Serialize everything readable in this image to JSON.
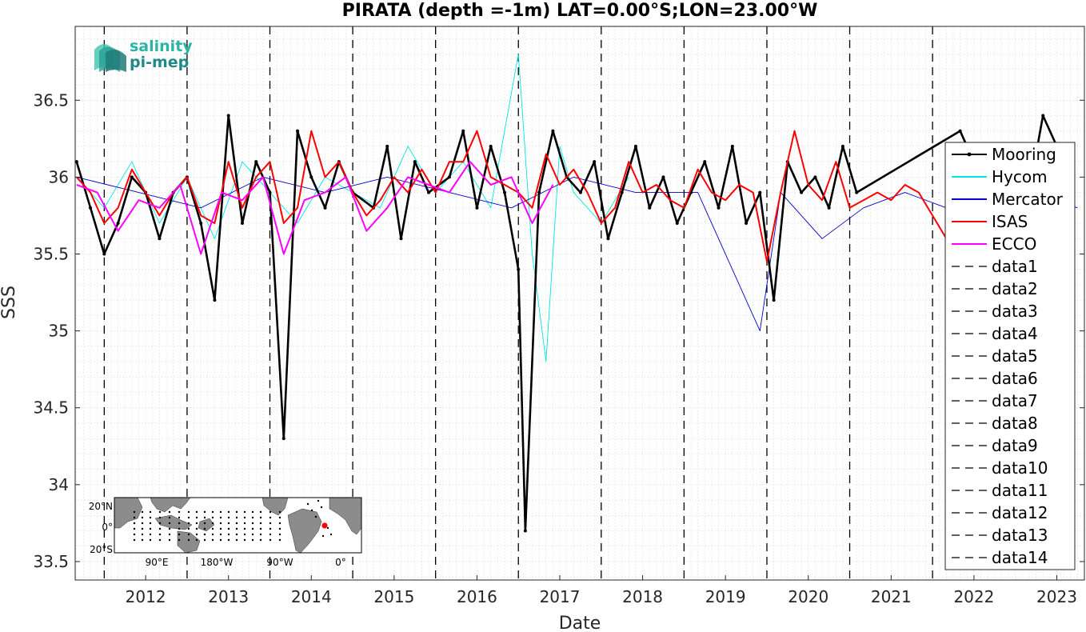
{
  "chart_data": {
    "type": "line",
    "title": "PIRATA (depth =-1m) LAT=0.00°S;LON=23.00°W",
    "xlabel": "Date",
    "ylabel": "SSS",
    "xlim": [
      "2011-08-25",
      "2023-11-01"
    ],
    "ylim": [
      33.38,
      36.98
    ],
    "x_ticks": [
      "2012",
      "2013",
      "2014",
      "2015",
      "2016",
      "2017",
      "2018",
      "2019",
      "2020",
      "2021",
      "2022",
      "2023"
    ],
    "y_ticks": [
      "33.5",
      "34",
      "34.5",
      "35",
      "35.5",
      "36",
      "36.5"
    ],
    "y_tick_values": [
      33.5,
      34,
      34.5,
      35,
      35.5,
      36,
      36.5
    ],
    "vlines": [
      "2012-01-01",
      "2013-01-01",
      "2014-01-01",
      "2015-01-01",
      "2016-01-01",
      "2017-01-01",
      "2018-01-01",
      "2019-01-01",
      "2020-01-01",
      "2021-01-01",
      "2022-01-01"
    ],
    "grid": "minor dotted",
    "legend_position": "right",
    "series": [
      {
        "name": "Mooring",
        "color": "#000000",
        "style": "solid-dots",
        "x": [
          "2011-09",
          "2011-11",
          "2012-01",
          "2012-03",
          "2012-05",
          "2012-07",
          "2012-09",
          "2012-11",
          "2013-01",
          "2013-03",
          "2013-05",
          "2013-07",
          "2013-09",
          "2013-11",
          "2014-01",
          "2014-03",
          "2014-05",
          "2014-07",
          "2014-09",
          "2014-11",
          "2015-01",
          "2015-04",
          "2015-06",
          "2015-08",
          "2015-10",
          "2015-12",
          "2016-03",
          "2016-05",
          "2016-07",
          "2016-09",
          "2016-11",
          "2017-01",
          "2017-02",
          "2017-04",
          "2017-06",
          "2017-08",
          "2017-10",
          "2017-12",
          "2018-02",
          "2018-04",
          "2018-06",
          "2018-08",
          "2018-10",
          "2018-12",
          "2019-02",
          "2019-04",
          "2019-06",
          "2019-08",
          "2019-10",
          "2019-12",
          "2020-02",
          "2020-04",
          "2020-06",
          "2020-08",
          "2020-10",
          "2020-12",
          "2021-02",
          "2022-05",
          "2022-07",
          "2023-03",
          "2023-05",
          "2023-07"
        ],
        "values": [
          36.1,
          35.8,
          35.5,
          35.7,
          36.0,
          35.9,
          35.6,
          35.9,
          36.0,
          35.7,
          35.2,
          36.4,
          35.7,
          36.1,
          35.9,
          34.3,
          36.3,
          36.0,
          35.8,
          36.1,
          35.9,
          35.8,
          36.2,
          35.6,
          36.1,
          35.9,
          36.0,
          36.3,
          35.8,
          36.2,
          35.9,
          35.4,
          33.7,
          35.9,
          36.3,
          36.0,
          35.9,
          36.1,
          35.6,
          35.9,
          36.2,
          35.8,
          36.0,
          35.7,
          35.9,
          36.1,
          35.8,
          36.2,
          35.7,
          35.9,
          35.2,
          36.1,
          35.9,
          36.0,
          35.8,
          36.2,
          35.9,
          36.3,
          36.1,
          35.9,
          36.4,
          36.2
        ]
      },
      {
        "name": "Hycom",
        "color": "#00e5e5",
        "style": "thin",
        "x": [
          "2011-09",
          "2012-01",
          "2012-05",
          "2012-09",
          "2013-01",
          "2013-05",
          "2013-09",
          "2014-01",
          "2014-05",
          "2014-09",
          "2015-01",
          "2015-05",
          "2015-09",
          "2016-01",
          "2016-05",
          "2016-09",
          "2017-01",
          "2017-03",
          "2017-05",
          "2017-07",
          "2017-09",
          "2018-01",
          "2018-05"
        ],
        "values": [
          36.0,
          35.8,
          36.1,
          35.7,
          36.0,
          35.6,
          36.1,
          35.9,
          35.7,
          36.0,
          35.9,
          35.8,
          36.2,
          35.9,
          36.1,
          35.8,
          36.8,
          35.5,
          34.8,
          36.2,
          35.9,
          35.7,
          36.0
        ]
      },
      {
        "name": "Mercator",
        "color": "#0000cd",
        "style": "thin",
        "x": [
          "2011-09",
          "2012-06",
          "2013-03",
          "2013-12",
          "2014-09",
          "2015-06",
          "2016-03",
          "2016-12",
          "2017-09",
          "2018-06",
          "2019-03",
          "2019-12",
          "2020-03",
          "2020-09",
          "2021-03",
          "2021-09",
          "2022-03",
          "2022-09",
          "2023-03",
          "2023-10"
        ],
        "values": [
          36.0,
          35.9,
          35.8,
          36.0,
          35.9,
          36.0,
          35.9,
          35.8,
          36.0,
          35.9,
          35.9,
          35.0,
          35.9,
          35.6,
          35.8,
          35.9,
          35.8,
          35.5,
          35.9,
          35.8
        ]
      },
      {
        "name": "ISAS",
        "color": "#ff0000",
        "style": "medium",
        "x": [
          "2011-09",
          "2011-11",
          "2012-01",
          "2012-03",
          "2012-05",
          "2012-07",
          "2012-09",
          "2012-11",
          "2013-01",
          "2013-03",
          "2013-05",
          "2013-07",
          "2013-09",
          "2013-11",
          "2014-01",
          "2014-03",
          "2014-05",
          "2014-07",
          "2014-09",
          "2014-11",
          "2015-01",
          "2015-03",
          "2015-05",
          "2015-07",
          "2015-09",
          "2015-11",
          "2016-01",
          "2016-03",
          "2016-05",
          "2016-07",
          "2016-09",
          "2016-11",
          "2017-01",
          "2017-03",
          "2017-05",
          "2017-07",
          "2017-09",
          "2017-11",
          "2018-01",
          "2018-03",
          "2018-05",
          "2018-07",
          "2018-09",
          "2018-11",
          "2019-01",
          "2019-03",
          "2019-05",
          "2019-07",
          "2019-09",
          "2019-11",
          "2020-01",
          "2020-03",
          "2020-05",
          "2020-07",
          "2020-09",
          "2020-11",
          "2021-01",
          "2021-03",
          "2021-05",
          "2021-07",
          "2021-09",
          "2021-11",
          "2022-01",
          "2022-03"
        ],
        "values": [
          36.0,
          35.9,
          35.7,
          35.8,
          36.05,
          35.9,
          35.75,
          35.9,
          36.0,
          35.75,
          35.7,
          36.1,
          35.8,
          36.0,
          36.1,
          35.7,
          35.8,
          36.3,
          36.0,
          36.1,
          35.9,
          35.75,
          35.85,
          36.0,
          35.9,
          36.05,
          35.9,
          36.1,
          36.1,
          36.3,
          36.0,
          35.95,
          35.9,
          35.8,
          36.15,
          35.95,
          36.05,
          35.9,
          35.7,
          35.8,
          36.1,
          35.9,
          35.95,
          35.85,
          35.8,
          36.05,
          35.9,
          35.85,
          35.95,
          35.9,
          35.45,
          35.9,
          36.3,
          35.95,
          35.85,
          36.1,
          35.8,
          35.85,
          35.9,
          35.85,
          35.95,
          35.9,
          35.75,
          35.6
        ]
      },
      {
        "name": "ECCO",
        "color": "#ff00ff",
        "style": "medium",
        "x": [
          "2011-09",
          "2011-12",
          "2012-03",
          "2012-06",
          "2012-09",
          "2012-12",
          "2013-03",
          "2013-06",
          "2013-09",
          "2013-12",
          "2014-03",
          "2014-06",
          "2014-09",
          "2014-12",
          "2015-03",
          "2015-06",
          "2015-09",
          "2015-12",
          "2016-03",
          "2016-06",
          "2016-09",
          "2016-12",
          "2017-03",
          "2017-06"
        ],
        "values": [
          35.95,
          35.9,
          35.65,
          35.85,
          35.8,
          35.95,
          35.5,
          35.9,
          35.85,
          36.0,
          35.5,
          35.85,
          35.9,
          36.0,
          35.65,
          35.8,
          36.0,
          35.95,
          35.9,
          36.1,
          35.95,
          36.0,
          35.7,
          35.95
        ]
      }
    ]
  },
  "legend": [
    {
      "label": "Mooring",
      "color": "#000000",
      "dash": false,
      "marker": true
    },
    {
      "label": "Hycom",
      "color": "#00e5e5",
      "dash": false,
      "marker": false
    },
    {
      "label": "Mercator",
      "color": "#0000cd",
      "dash": false,
      "marker": false
    },
    {
      "label": "ISAS",
      "color": "#ff0000",
      "dash": false,
      "marker": false
    },
    {
      "label": "ECCO",
      "color": "#ff00ff",
      "dash": false,
      "marker": false
    },
    {
      "label": "data1",
      "color": "#000000",
      "dash": true,
      "marker": false
    },
    {
      "label": "data2",
      "color": "#000000",
      "dash": true,
      "marker": false
    },
    {
      "label": "data3",
      "color": "#000000",
      "dash": true,
      "marker": false
    },
    {
      "label": "data4",
      "color": "#000000",
      "dash": true,
      "marker": false
    },
    {
      "label": "data5",
      "color": "#000000",
      "dash": true,
      "marker": false
    },
    {
      "label": "data6",
      "color": "#000000",
      "dash": true,
      "marker": false
    },
    {
      "label": "data7",
      "color": "#000000",
      "dash": true,
      "marker": false
    },
    {
      "label": "data8",
      "color": "#000000",
      "dash": true,
      "marker": false
    },
    {
      "label": "data9",
      "color": "#000000",
      "dash": true,
      "marker": false
    },
    {
      "label": "data10",
      "color": "#000000",
      "dash": true,
      "marker": false
    },
    {
      "label": "data11",
      "color": "#000000",
      "dash": true,
      "marker": false
    },
    {
      "label": "data12",
      "color": "#000000",
      "dash": true,
      "marker": false
    },
    {
      "label": "data13",
      "color": "#000000",
      "dash": true,
      "marker": false
    },
    {
      "label": "data14",
      "color": "#000000",
      "dash": true,
      "marker": false
    }
  ],
  "logo": {
    "line1": "salinity",
    "line2": "pi-mep",
    "color1": "#2bb3a3",
    "color2": "#1e8a87"
  },
  "inset_map": {
    "lat_labels": [
      "20°N",
      "0°",
      "20°S"
    ],
    "lon_labels": [
      "90°E",
      "180°W",
      "90°W",
      "0°"
    ],
    "marker_color": "#ff0000"
  }
}
